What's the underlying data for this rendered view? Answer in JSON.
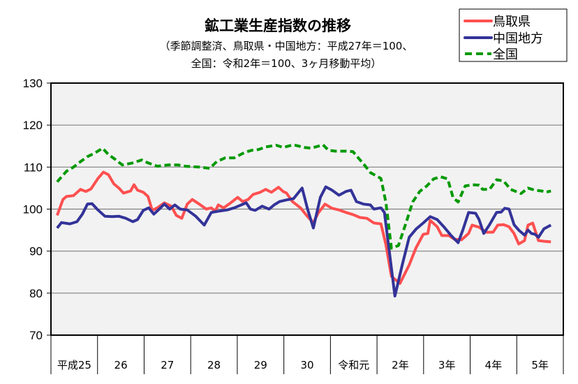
{
  "chart_data": {
    "type": "line",
    "title": "鉱工業生産指数の推移",
    "subtitle_lines": [
      "（季節調整済、鳥取県・中国地方：平成27年＝100、",
      "全国：令和2年＝100、3ヶ月移動平均）"
    ],
    "xlabel": "",
    "ylabel": "",
    "ylim": [
      70,
      130
    ],
    "yticks": [
      70,
      80,
      90,
      100,
      110,
      120,
      130
    ],
    "x_unit": "months from start of 平成25",
    "xlim": [
      0,
      132
    ],
    "categories": [
      "平成25",
      "26",
      "27",
      "28",
      "29",
      "30",
      "令和元",
      "2年",
      "3年",
      "4年",
      "5年"
    ],
    "grid": true,
    "legend_position": "top-right",
    "series": [
      {
        "name": "鳥取県",
        "color": "#ff5050",
        "style": "solid",
        "points": [
          [
            1.6,
            98.5
          ],
          [
            3.1,
            102.3
          ],
          [
            4,
            103
          ],
          [
            5.8,
            103.2
          ],
          [
            7.6,
            104.7
          ],
          [
            9,
            104.2
          ],
          [
            10.3,
            104.8
          ],
          [
            12.1,
            107.3
          ],
          [
            13.5,
            108.8
          ],
          [
            14.8,
            108.2
          ],
          [
            16.2,
            106
          ],
          [
            17.5,
            105
          ],
          [
            18.7,
            103.8
          ],
          [
            20.5,
            104.3
          ],
          [
            21.4,
            105.8
          ],
          [
            22.3,
            104.5
          ],
          [
            23.8,
            104
          ],
          [
            25,
            103
          ],
          [
            26.1,
            99.7
          ],
          [
            27.4,
            100.3
          ],
          [
            29.2,
            101.5
          ],
          [
            31,
            100.7
          ],
          [
            32.3,
            98.5
          ],
          [
            33.7,
            97.8
          ],
          [
            35.1,
            101.2
          ],
          [
            36.4,
            102.3
          ],
          [
            38.2,
            101.2
          ],
          [
            40,
            100
          ],
          [
            41.3,
            100.3
          ],
          [
            42.3,
            99.5
          ],
          [
            43.1,
            101
          ],
          [
            44.5,
            100.3
          ],
          [
            46.3,
            101.5
          ],
          [
            48.1,
            102.8
          ],
          [
            49.4,
            101.8
          ],
          [
            50.8,
            102.3
          ],
          [
            52.1,
            103.5
          ],
          [
            53.9,
            104
          ],
          [
            55.3,
            104.7
          ],
          [
            56.8,
            104
          ],
          [
            58.6,
            105.2
          ],
          [
            59.8,
            104.2
          ],
          [
            60.7,
            103.8
          ],
          [
            62.2,
            101.8
          ],
          [
            64.3,
            100.3
          ],
          [
            66.1,
            98.2
          ],
          [
            67.6,
            96.8
          ],
          [
            68.8,
            99
          ],
          [
            70.6,
            101.2
          ],
          [
            72.4,
            100.2
          ],
          [
            74.2,
            99.8
          ],
          [
            76,
            99.2
          ],
          [
            77.8,
            98.7
          ],
          [
            79.6,
            98
          ],
          [
            81.4,
            97.8
          ],
          [
            83.2,
            96.7
          ],
          [
            85,
            96.5
          ],
          [
            86.3,
            91.5
          ],
          [
            87.7,
            84
          ],
          [
            89.9,
            82.3
          ],
          [
            92.3,
            86.7
          ],
          [
            94,
            90.7
          ],
          [
            95.9,
            94
          ],
          [
            97.1,
            94.2
          ],
          [
            97.7,
            97.3
          ],
          [
            99.5,
            95.8
          ],
          [
            100.7,
            93.7
          ],
          [
            102.5,
            93.7
          ],
          [
            104,
            92.8
          ],
          [
            105.8,
            92.7
          ],
          [
            107.6,
            94.2
          ],
          [
            108.5,
            96.2
          ],
          [
            110.3,
            95.7
          ],
          [
            112.1,
            94.5
          ],
          [
            113.9,
            94.5
          ],
          [
            115.1,
            96.2
          ],
          [
            116.6,
            96.3
          ],
          [
            118,
            95.8
          ],
          [
            119.3,
            94.2
          ],
          [
            120.5,
            91.7
          ],
          [
            122,
            92.5
          ],
          [
            122.9,
            96.2
          ],
          [
            124.1,
            96.7
          ],
          [
            125.6,
            92.5
          ],
          [
            127.4,
            92.3
          ],
          [
            128.8,
            92.2
          ]
        ]
      },
      {
        "name": "中国地方",
        "color": "#333399",
        "style": "solid",
        "points": [
          [
            1.6,
            95.5
          ],
          [
            2.7,
            96.8
          ],
          [
            4.9,
            96.5
          ],
          [
            6.7,
            97
          ],
          [
            8.1,
            98.8
          ],
          [
            9.4,
            101.2
          ],
          [
            10.6,
            101.3
          ],
          [
            12.1,
            99.8
          ],
          [
            13.9,
            98.3
          ],
          [
            15.7,
            98.2
          ],
          [
            17.5,
            98.3
          ],
          [
            19.3,
            97.8
          ],
          [
            21.1,
            97
          ],
          [
            22.3,
            97.5
          ],
          [
            23.8,
            99.7
          ],
          [
            25.2,
            100.3
          ],
          [
            26.5,
            98.8
          ],
          [
            27.9,
            100
          ],
          [
            29.2,
            101.2
          ],
          [
            30.6,
            100
          ],
          [
            31.9,
            101
          ],
          [
            33.3,
            100
          ],
          [
            35.1,
            99.8
          ],
          [
            37.3,
            98.3
          ],
          [
            39.5,
            96.2
          ],
          [
            41.3,
            99.2
          ],
          [
            43.1,
            99.5
          ],
          [
            45.4,
            99.8
          ],
          [
            47.2,
            100.3
          ],
          [
            50.3,
            101.5
          ],
          [
            51.4,
            100
          ],
          [
            52.6,
            99.7
          ],
          [
            54.4,
            100.7
          ],
          [
            56.2,
            100
          ],
          [
            57.5,
            101
          ],
          [
            58.9,
            101.8
          ],
          [
            60.7,
            102.2
          ],
          [
            62.5,
            102.5
          ],
          [
            64.7,
            105
          ],
          [
            66.1,
            100
          ],
          [
            67.6,
            95.5
          ],
          [
            69.4,
            102.8
          ],
          [
            70.8,
            105.3
          ],
          [
            72.4,
            104.5
          ],
          [
            74.2,
            103.3
          ],
          [
            76,
            104.2
          ],
          [
            77.3,
            104.5
          ],
          [
            78.7,
            101.8
          ],
          [
            80.5,
            101.2
          ],
          [
            82.3,
            101
          ],
          [
            83.2,
            100
          ],
          [
            85,
            100.3
          ],
          [
            85.9,
            99.2
          ],
          [
            87.4,
            88.2
          ],
          [
            88.6,
            79.3
          ],
          [
            90.5,
            86.7
          ],
          [
            92.3,
            93.3
          ],
          [
            94.1,
            95.3
          ],
          [
            95.9,
            96.7
          ],
          [
            97.7,
            98.2
          ],
          [
            99.5,
            97.5
          ],
          [
            101.3,
            95.7
          ],
          [
            103.1,
            93.7
          ],
          [
            104.9,
            92
          ],
          [
            106.1,
            95
          ],
          [
            107.6,
            99.2
          ],
          [
            109.4,
            99
          ],
          [
            110.3,
            97.5
          ],
          [
            111.5,
            94.2
          ],
          [
            113,
            96.3
          ],
          [
            114.8,
            99.2
          ],
          [
            116,
            99.3
          ],
          [
            116.9,
            100.2
          ],
          [
            118,
            100
          ],
          [
            119.3,
            96.3
          ],
          [
            120.5,
            95
          ],
          [
            122,
            93.8
          ],
          [
            122.9,
            95
          ],
          [
            123.8,
            94.2
          ],
          [
            124.7,
            94
          ],
          [
            125.6,
            93.3
          ],
          [
            127,
            95.3
          ],
          [
            128.8,
            96.2
          ]
        ]
      },
      {
        "name": "全国",
        "color": "#009900",
        "style": "dashed",
        "points": [
          [
            1.6,
            106.5
          ],
          [
            4,
            109
          ],
          [
            5.8,
            110
          ],
          [
            7.6,
            111.3
          ],
          [
            9.4,
            112.5
          ],
          [
            11.2,
            113.3
          ],
          [
            13.3,
            114.5
          ],
          [
            14.8,
            113
          ],
          [
            16.6,
            111.8
          ],
          [
            18.4,
            110.5
          ],
          [
            21.1,
            111
          ],
          [
            23.4,
            111.7
          ],
          [
            25,
            111
          ],
          [
            27.4,
            110.2
          ],
          [
            30.1,
            110.5
          ],
          [
            32.8,
            110.5
          ],
          [
            34.6,
            110.2
          ],
          [
            38.2,
            110
          ],
          [
            40.9,
            109.7
          ],
          [
            42.7,
            111.3
          ],
          [
            44.9,
            112.2
          ],
          [
            47.2,
            112.2
          ],
          [
            49.9,
            113.5
          ],
          [
            51.7,
            114
          ],
          [
            53.5,
            114.2
          ],
          [
            55.3,
            114.8
          ],
          [
            58,
            115.2
          ],
          [
            59.8,
            114.7
          ],
          [
            62.5,
            115.3
          ],
          [
            65.2,
            114.7
          ],
          [
            67,
            114.5
          ],
          [
            70.1,
            115.3
          ],
          [
            71.5,
            114
          ],
          [
            73.3,
            113.8
          ],
          [
            76,
            113.8
          ],
          [
            77.8,
            113.7
          ],
          [
            78.7,
            112.7
          ],
          [
            80.5,
            110.8
          ],
          [
            82.3,
            108.7
          ],
          [
            85,
            107.3
          ],
          [
            86.3,
            101.5
          ],
          [
            87.7,
            90.7
          ],
          [
            89.5,
            91.3
          ],
          [
            91.4,
            96.5
          ],
          [
            93.2,
            101.7
          ],
          [
            95,
            104.2
          ],
          [
            96.8,
            105.5
          ],
          [
            98.6,
            107.2
          ],
          [
            100.4,
            107.7
          ],
          [
            102.2,
            107.2
          ],
          [
            103.6,
            102.7
          ],
          [
            104.9,
            101.7
          ],
          [
            106.7,
            105.5
          ],
          [
            108.5,
            105.8
          ],
          [
            110.3,
            105.7
          ],
          [
            111.2,
            104.7
          ],
          [
            113,
            104.7
          ],
          [
            114.8,
            107
          ],
          [
            116.6,
            106.7
          ],
          [
            118.4,
            104.7
          ],
          [
            121.1,
            103.7
          ],
          [
            122.9,
            105
          ],
          [
            124.7,
            104.5
          ],
          [
            126.5,
            104.3
          ],
          [
            127.4,
            104
          ],
          [
            128.8,
            104.3
          ]
        ]
      }
    ]
  }
}
